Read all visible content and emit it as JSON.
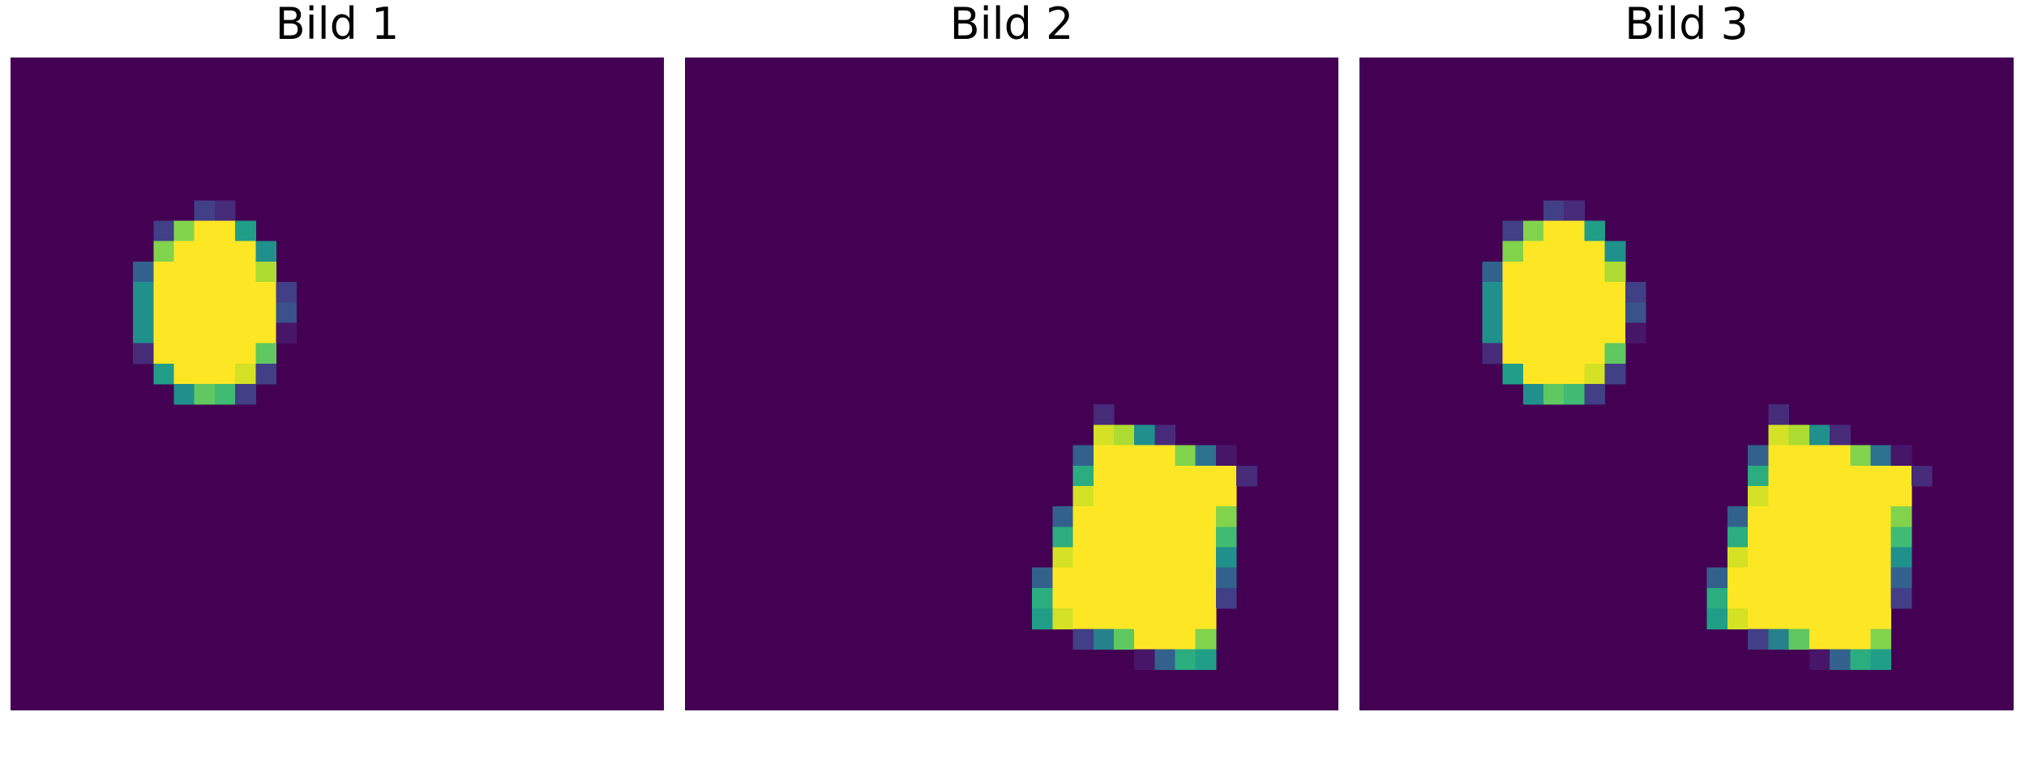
{
  "chart_data": [
    {
      "type": "heatmap",
      "title": "Bild 1",
      "grid_size": [
        32,
        32
      ],
      "colormap": "viridis",
      "value_range": [
        0,
        1
      ],
      "background_value": 0,
      "shapes": [
        {
          "kind": "ellipse",
          "center": [
            9.8,
            12.3
          ],
          "radii": [
            3.4,
            4.5
          ],
          "angle_deg": 0
        }
      ]
    },
    {
      "type": "heatmap",
      "title": "Bild 2",
      "grid_size": [
        32,
        32
      ],
      "colormap": "viridis",
      "value_range": [
        0,
        1
      ],
      "background_value": 0,
      "shapes": [
        {
          "kind": "polygon",
          "points": [
            [
              20.3,
              17.7
            ],
            [
              27.2,
              20.2
            ],
            [
              25.6,
              29.9
            ],
            [
              17.0,
              27.5
            ]
          ]
        }
      ]
    },
    {
      "type": "heatmap",
      "title": "Bild 3",
      "grid_size": [
        32,
        32
      ],
      "colormap": "viridis",
      "value_range": [
        0,
        1
      ],
      "background_value": 0,
      "shapes": [
        {
          "kind": "ellipse",
          "center": [
            9.8,
            12.3
          ],
          "radii": [
            3.4,
            4.5
          ],
          "angle_deg": 0
        },
        {
          "kind": "polygon",
          "points": [
            [
              20.3,
              17.7
            ],
            [
              27.2,
              20.2
            ],
            [
              25.6,
              29.9
            ],
            [
              17.0,
              27.5
            ]
          ]
        }
      ]
    }
  ]
}
